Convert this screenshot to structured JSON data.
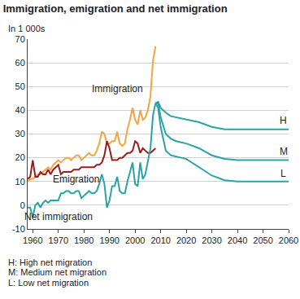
{
  "chart_data": {
    "type": "line",
    "title": "Immigration, emigration and net immigration",
    "subtitle": "In 1 000s",
    "x": [
      1958,
      1959,
      1960,
      1961,
      1962,
      1963,
      1964,
      1965,
      1966,
      1967,
      1968,
      1969,
      1970,
      1971,
      1972,
      1973,
      1974,
      1975,
      1976,
      1977,
      1978,
      1979,
      1980,
      1981,
      1982,
      1983,
      1984,
      1985,
      1986,
      1987,
      1988,
      1989,
      1990,
      1991,
      1992,
      1993,
      1994,
      1995,
      1996,
      1997,
      1998,
      1999,
      2000,
      2001,
      2002,
      2003,
      2004,
      2005,
      2006,
      2007,
      2008,
      2009,
      2010,
      2012,
      2014,
      2016,
      2018,
      2020,
      2025,
      2030,
      2035,
      2040,
      2050,
      2060
    ],
    "series": [
      {
        "name": "Immigration",
        "color": "#f5a442",
        "values": [
          10,
          11,
          11,
          12,
          13,
          13,
          14,
          15,
          16,
          15,
          17,
          18,
          19,
          18,
          19,
          20,
          20,
          19,
          20,
          21,
          21,
          19,
          20,
          21,
          22,
          21,
          21,
          23,
          26,
          31,
          30,
          26,
          26,
          27,
          27,
          31,
          26,
          25,
          26,
          32,
          36,
          41,
          36,
          34,
          40,
          36,
          37,
          40,
          46,
          61,
          67,
          null,
          null,
          null,
          null,
          null,
          null,
          null,
          null,
          null,
          null,
          null,
          null,
          null
        ]
      },
      {
        "name": "Emigration",
        "color": "#9b1c1f",
        "values": [
          11,
          12,
          19,
          12,
          12,
          14,
          13,
          13,
          15,
          13,
          15,
          16,
          17,
          13,
          14,
          14,
          14,
          14,
          15,
          15,
          15,
          16,
          16,
          16,
          16,
          16,
          16,
          17,
          17,
          18,
          21,
          27,
          24,
          19,
          19,
          19,
          20,
          20,
          21,
          22,
          22,
          23,
          27,
          26,
          22,
          24,
          23,
          22,
          22,
          23,
          24,
          null,
          null,
          null,
          null,
          null,
          null,
          null,
          null,
          null,
          null,
          null,
          null,
          null
        ]
      },
      {
        "name": "Net immigration",
        "color": "#29a3a6",
        "values": [
          -1,
          -1,
          -5,
          0,
          1,
          -1,
          1,
          2,
          1,
          2,
          2,
          2,
          2,
          5,
          5,
          6,
          6,
          5,
          5,
          6,
          6,
          3,
          4,
          5,
          6,
          5,
          5,
          6,
          9,
          13,
          9,
          -1,
          2,
          8,
          8,
          12,
          6,
          5,
          5,
          10,
          14,
          18,
          9,
          8,
          18,
          11,
          13,
          18,
          24,
          38,
          43,
          null,
          null,
          null,
          null,
          null,
          null,
          null,
          null,
          null,
          null,
          null,
          null,
          null
        ]
      },
      {
        "name": "H",
        "color": "#29a3a6",
        "values": [
          null,
          null,
          null,
          null,
          null,
          null,
          null,
          null,
          null,
          null,
          null,
          null,
          null,
          null,
          null,
          null,
          null,
          null,
          null,
          null,
          null,
          null,
          null,
          null,
          null,
          null,
          null,
          null,
          null,
          null,
          null,
          null,
          null,
          null,
          null,
          null,
          null,
          null,
          null,
          null,
          null,
          null,
          null,
          null,
          null,
          null,
          null,
          null,
          null,
          null,
          43,
          43.5,
          41,
          39,
          37.5,
          37,
          36.5,
          36,
          35,
          33,
          32,
          32,
          32,
          32
        ]
      },
      {
        "name": "M",
        "color": "#29a3a6",
        "values": [
          null,
          null,
          null,
          null,
          null,
          null,
          null,
          null,
          null,
          null,
          null,
          null,
          null,
          null,
          null,
          null,
          null,
          null,
          null,
          null,
          null,
          null,
          null,
          null,
          null,
          null,
          null,
          null,
          null,
          null,
          null,
          null,
          null,
          null,
          null,
          null,
          null,
          null,
          null,
          null,
          null,
          null,
          null,
          null,
          null,
          null,
          null,
          null,
          null,
          null,
          43,
          43,
          37,
          30,
          28,
          27,
          26.5,
          26,
          24,
          21,
          19.5,
          19,
          19,
          19
        ]
      },
      {
        "name": "L",
        "color": "#29a3a6",
        "values": [
          null,
          null,
          null,
          null,
          null,
          null,
          null,
          null,
          null,
          null,
          null,
          null,
          null,
          null,
          null,
          null,
          null,
          null,
          null,
          null,
          null,
          null,
          null,
          null,
          null,
          null,
          null,
          null,
          null,
          null,
          null,
          null,
          null,
          null,
          null,
          null,
          null,
          null,
          null,
          null,
          null,
          null,
          null,
          null,
          null,
          null,
          null,
          null,
          null,
          null,
          43,
          41,
          33,
          23,
          21,
          20.5,
          20,
          19.5,
          16,
          12.5,
          10.5,
          10,
          10,
          10
        ]
      }
    ],
    "annotations": [
      {
        "text": "Immigration",
        "x": 1993,
        "y": 49
      },
      {
        "text": "Emigration",
        "x": 1977,
        "y": 11
      },
      {
        "text": "Net immigration",
        "x": 1970,
        "y": -5
      },
      {
        "text": "H",
        "x": 2058,
        "y": 35.5
      },
      {
        "text": "M",
        "x": 2058,
        "y": 22.5
      },
      {
        "text": "L",
        "x": 2058,
        "y": 13.5
      }
    ],
    "notes": [
      "H: High net migration",
      "M: Medium net migration",
      "L: Low net migration"
    ],
    "xlim": [
      1958,
      2060
    ],
    "xticks": [
      1960,
      1970,
      1980,
      1990,
      2000,
      2010,
      2020,
      2030,
      2040,
      2050,
      2060
    ],
    "ylim": [
      -10,
      70
    ],
    "yticks": [
      -10,
      0,
      10,
      20,
      30,
      40,
      50,
      60,
      70
    ],
    "grid": true,
    "legend": "none"
  }
}
